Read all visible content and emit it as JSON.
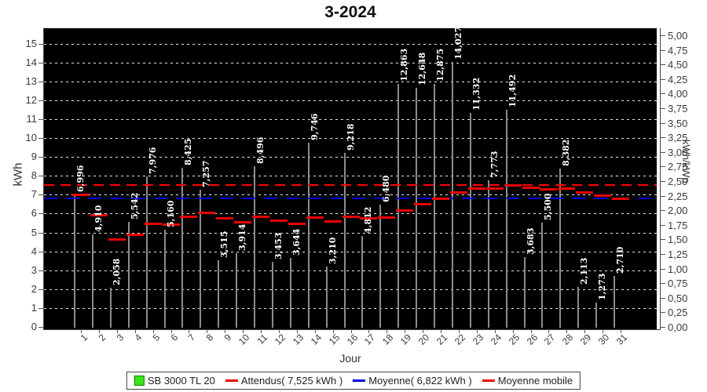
{
  "title": "3-2024",
  "chart_data": {
    "type": "bar",
    "title": "3-2024",
    "xlabel": "Jour",
    "ylabel_left": "kWh",
    "ylabel_right": "kWh/kWp",
    "ylim_left": [
      0,
      15.7
    ],
    "ylim_right": [
      0,
      5.0
    ],
    "grid": "white dashed horizontal on black plot background",
    "legend_position": "bottom center",
    "categories": [
      "1",
      "2",
      "3",
      "4",
      "5",
      "6",
      "7",
      "8",
      "9",
      "10",
      "11",
      "12",
      "13",
      "14",
      "15",
      "16",
      "17",
      "18",
      "19",
      "20",
      "21",
      "22",
      "23",
      "24",
      "25",
      "26",
      "27",
      "28",
      "29",
      "30",
      "31"
    ],
    "series": [
      {
        "name": "SB 3000 TL 20",
        "values": [
          6.996,
          4.91,
          2.058,
          5.542,
          7.976,
          5.16,
          8.425,
          7.257,
          3.515,
          3.914,
          8.496,
          3.453,
          3.644,
          9.746,
          3.21,
          9.218,
          4.812,
          6.48,
          12.863,
          12.648,
          12.875,
          14.027,
          11.332,
          7.773,
          11.492,
          3.683,
          5.5,
          8.382,
          2.113,
          1.273,
          2.71
        ],
        "labels": [
          "6,996",
          "4,910",
          "2,058",
          "5,542",
          "7,976",
          "5,160",
          "8,425",
          "7,257",
          "3,515",
          "3,914",
          "8,496",
          "3,453",
          "3,644",
          "9,746",
          "3,210",
          "9,218",
          "4,812",
          "6,480",
          "12,863",
          "12,648",
          "12,875",
          "14,027",
          "11,332",
          "7,773",
          "11,492",
          "3,683",
          "5,500",
          "8,382",
          "2,113",
          "1,273",
          "2,710"
        ]
      }
    ],
    "attendus_kwh": 7.525,
    "moyenne_kwh": 6.822,
    "moyenne_mobile": [
      6.996,
      5.953,
      4.655,
      4.877,
      5.496,
      5.44,
      5.867,
      6.041,
      5.76,
      5.575,
      5.841,
      5.642,
      5.488,
      5.792,
      5.62,
      5.845,
      5.784,
      5.823,
      6.193,
      6.516,
      6.819,
      7.147,
      7.329,
      7.347,
      7.513,
      7.366,
      7.296,
      7.335,
      7.155,
      6.959,
      6.822
    ],
    "yticks_left": [
      "0",
      "1",
      "2",
      "3",
      "4",
      "5",
      "6",
      "7",
      "8",
      "9",
      "10",
      "11",
      "12",
      "13",
      "14",
      "15"
    ],
    "yticks_right": [
      "0,00",
      "0,25",
      "0,50",
      "0,75",
      "1,00",
      "1,25",
      "1,50",
      "1,75",
      "2,00",
      "2,25",
      "2,50",
      "2,75",
      "3,00",
      "3,25",
      "3,50",
      "3,75",
      "4,00",
      "4,25",
      "4,50",
      "4,75",
      "5,00"
    ]
  },
  "axis": {
    "xlabel": "Jour",
    "ylabel_left": "kWh",
    "ylabel_right": "kWh/kWp"
  },
  "legend": {
    "items": [
      {
        "label": "SB 3000 TL 20",
        "swatch": "square",
        "color": "#38e51c"
      },
      {
        "label": "Attendus( 7,525 kWh )",
        "swatch": "line",
        "color": "#ee0000"
      },
      {
        "label": "Moyenne( 6,822 kWh )",
        "swatch": "line",
        "color": "#0000dd"
      },
      {
        "label": "Moyenne mobile",
        "swatch": "line",
        "color": "#ee0000"
      }
    ]
  },
  "colors": {
    "bar_fill": "#34e016",
    "bar_border": "#8c8c8c",
    "plot_background": "#000000",
    "gridline": "#e8e8e8",
    "attendus_line": "#ff0000",
    "moyenne_line": "#0000dd",
    "moyenne_mobile_line": "#ee0000",
    "page_background": "#ffffff",
    "value_label": "#ffffff"
  }
}
